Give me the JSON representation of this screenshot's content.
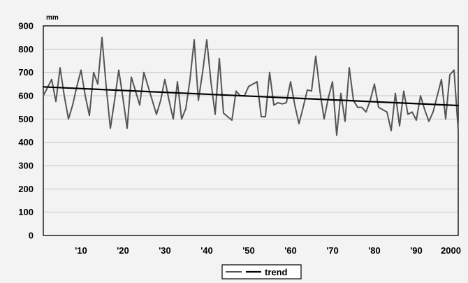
{
  "chart_data": {
    "type": "line",
    "title": "",
    "xlabel": "",
    "ylabel": "mm",
    "ylim": [
      0,
      900
    ],
    "xlim": [
      1901,
      2000
    ],
    "y_ticks": [
      "0",
      "100",
      "200",
      "300",
      "400",
      "500",
      "600",
      "700",
      "800",
      "900"
    ],
    "x_ticks": [
      {
        "value": 1910,
        "label": "'10"
      },
      {
        "value": 1920,
        "label": "'20"
      },
      {
        "value": 1930,
        "label": "'30"
      },
      {
        "value": 1940,
        "label": "'40"
      },
      {
        "value": 1950,
        "label": "'50"
      },
      {
        "value": 1960,
        "label": "'60"
      },
      {
        "value": 1970,
        "label": "'70"
      },
      {
        "value": 1980,
        "label": "'80"
      },
      {
        "value": 1990,
        "label": "'90"
      },
      {
        "value": 2000,
        "label": "2000"
      }
    ],
    "grid": true,
    "legend_position": "bottom",
    "legend": [
      "",
      "trend"
    ],
    "series": [
      {
        "color": "#555555",
        "x": [
          1901,
          1902,
          1903,
          1904,
          1905,
          1906,
          1907,
          1908,
          1909,
          1910,
          1911,
          1912,
          1913,
          1914,
          1915,
          1916,
          1917,
          1918,
          1919,
          1920,
          1921,
          1922,
          1923,
          1924,
          1925,
          1926,
          1927,
          1928,
          1929,
          1930,
          1931,
          1932,
          1933,
          1934,
          1935,
          1936,
          1937,
          1938,
          1939,
          1940,
          1941,
          1942,
          1943,
          1944,
          1945,
          1946,
          1947,
          1948,
          1949,
          1950,
          1951,
          1952,
          1953,
          1954,
          1955,
          1956,
          1957,
          1958,
          1959,
          1960,
          1961,
          1962,
          1963,
          1964,
          1965,
          1966,
          1967,
          1968,
          1969,
          1970,
          1971,
          1972,
          1973,
          1974,
          1975,
          1976,
          1977,
          1978,
          1979,
          1980,
          1981,
          1982,
          1983,
          1984,
          1985,
          1986,
          1987,
          1988,
          1989,
          1990,
          1991,
          1992,
          1993,
          1994,
          1995,
          1996,
          1997,
          1998,
          1999,
          2000
        ],
        "values": [
          600,
          635,
          670,
          575,
          720,
          600,
          500,
          560,
          640,
          710,
          600,
          515,
          700,
          650,
          850,
          640,
          460,
          580,
          710,
          590,
          460,
          680,
          620,
          560,
          700,
          640,
          580,
          520,
          580,
          670,
          580,
          500,
          660,
          500,
          545,
          670,
          840,
          580,
          700,
          840,
          660,
          520,
          760,
          525,
          510,
          495,
          620,
          600,
          600,
          640,
          650,
          660,
          510,
          510,
          700,
          560,
          570,
          565,
          570,
          660,
          560,
          480,
          550,
          625,
          620,
          770,
          620,
          500,
          590,
          660,
          430,
          610,
          490,
          720,
          580,
          550,
          550,
          530,
          580,
          650,
          550,
          540,
          530,
          450,
          610,
          470,
          620,
          520,
          530,
          495,
          600,
          540,
          490,
          530,
          600,
          670,
          500,
          690,
          710,
          450
        ]
      },
      {
        "name": "trend",
        "color": "#000000",
        "x": [
          1901,
          2000
        ],
        "values": [
          638,
          558
        ]
      }
    ]
  }
}
